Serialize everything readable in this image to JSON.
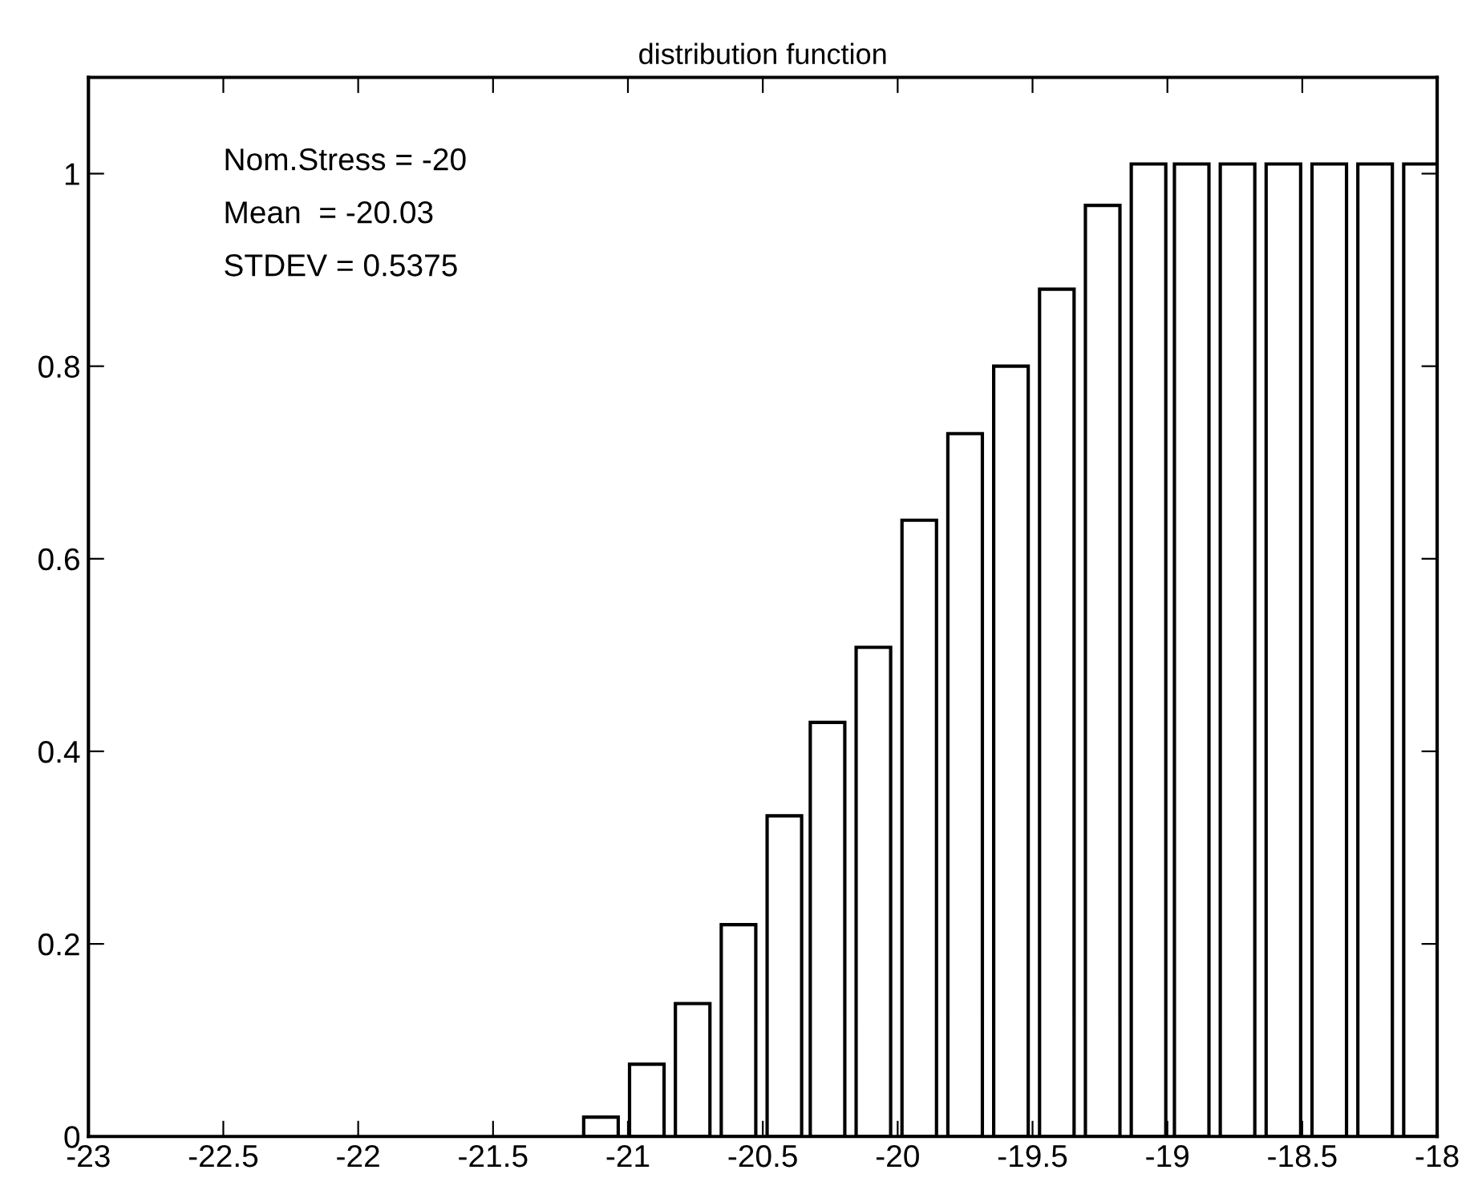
{
  "chart_data": {
    "type": "bar",
    "title": "distribution function",
    "x": [
      -21.1,
      -20.93,
      -20.76,
      -20.59,
      -20.42,
      -20.26,
      -20.09,
      -19.92,
      -19.75,
      -19.58,
      -19.41,
      -19.24,
      -19.07,
      -18.91,
      -18.74,
      -18.57,
      -18.4,
      -18.23,
      -18.06
    ],
    "values": [
      0.02,
      0.075,
      0.138,
      0.22,
      0.333,
      0.43,
      0.508,
      0.64,
      0.73,
      0.8,
      0.88,
      0.967,
      1.01,
      1.01,
      1.01,
      1.01,
      1.01,
      1.01,
      1.01
    ],
    "color": "#ffffff",
    "xlim": [
      -23,
      -18
    ],
    "xticks": [
      -23,
      -22.5,
      -22,
      -21.5,
      -21,
      -20.5,
      -20,
      -19.5,
      -19,
      -18.5,
      -18
    ],
    "ylim": [
      0,
      1.1
    ],
    "yticks": [
      0,
      0.2,
      0.4,
      0.6,
      0.8,
      1
    ],
    "annotations": [
      "Nom.Stress = -20",
      "Mean  = -20.03",
      "STDEV = 0.5375"
    ],
    "grid": false,
    "legend": false
  }
}
